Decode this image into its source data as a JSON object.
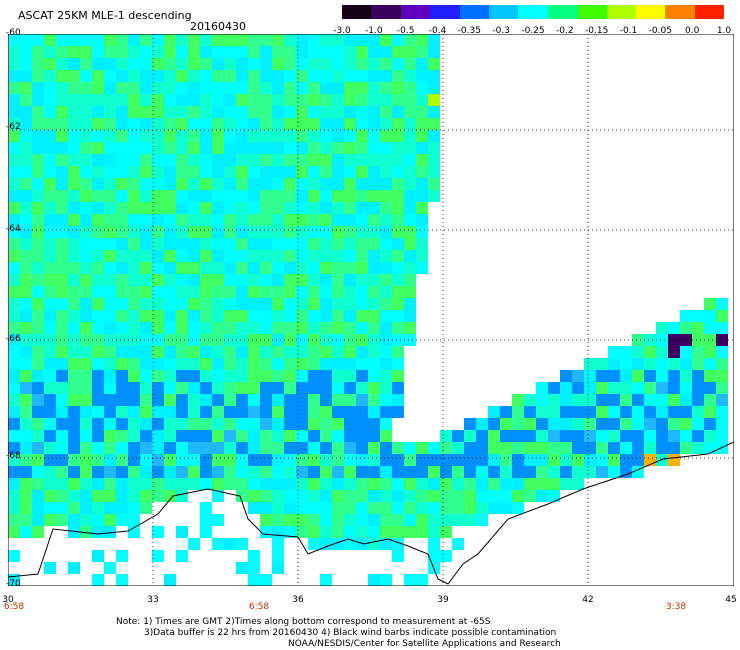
{
  "header": {
    "title": "ASCAT 25KM MLE-1 descending",
    "date": "20160430"
  },
  "colorbar": {
    "labels": [
      "-3.0",
      "-1.0",
      "-0.5",
      "-0.4",
      "-0.35",
      "-0.3",
      "-0.25",
      "-0.2",
      "-0.15",
      "-0.1",
      "-0.05",
      "0.0",
      "1.0"
    ],
    "colors": [
      "#160016",
      "#3c0060",
      "#6000c0",
      "#2020ff",
      "#0070ff",
      "#00c8ff",
      "#00ffff",
      "#00ff80",
      "#40ff00",
      "#b0ff00",
      "#ffff00",
      "#ff8000",
      "#ff2000"
    ]
  },
  "map": {
    "lat_labels": [
      "-60",
      "-62",
      "-64",
      "-66",
      "-68",
      "-70"
    ],
    "lon_labels": [
      "30",
      "33",
      "36",
      "39",
      "42",
      "45"
    ],
    "time_labels": [
      "6:58",
      "6:58",
      "3:38"
    ]
  },
  "notes": {
    "line1": "Note: 1) Times are GMT 2)Times along bottom correspond to measurement at -65S",
    "line2": "3)Data buffer is 22 hrs from 20160430 4) Black wind barbs indicate possible contamination",
    "line3": "NOAA/NESDIS/Center for Satellite Applications and Research"
  }
}
